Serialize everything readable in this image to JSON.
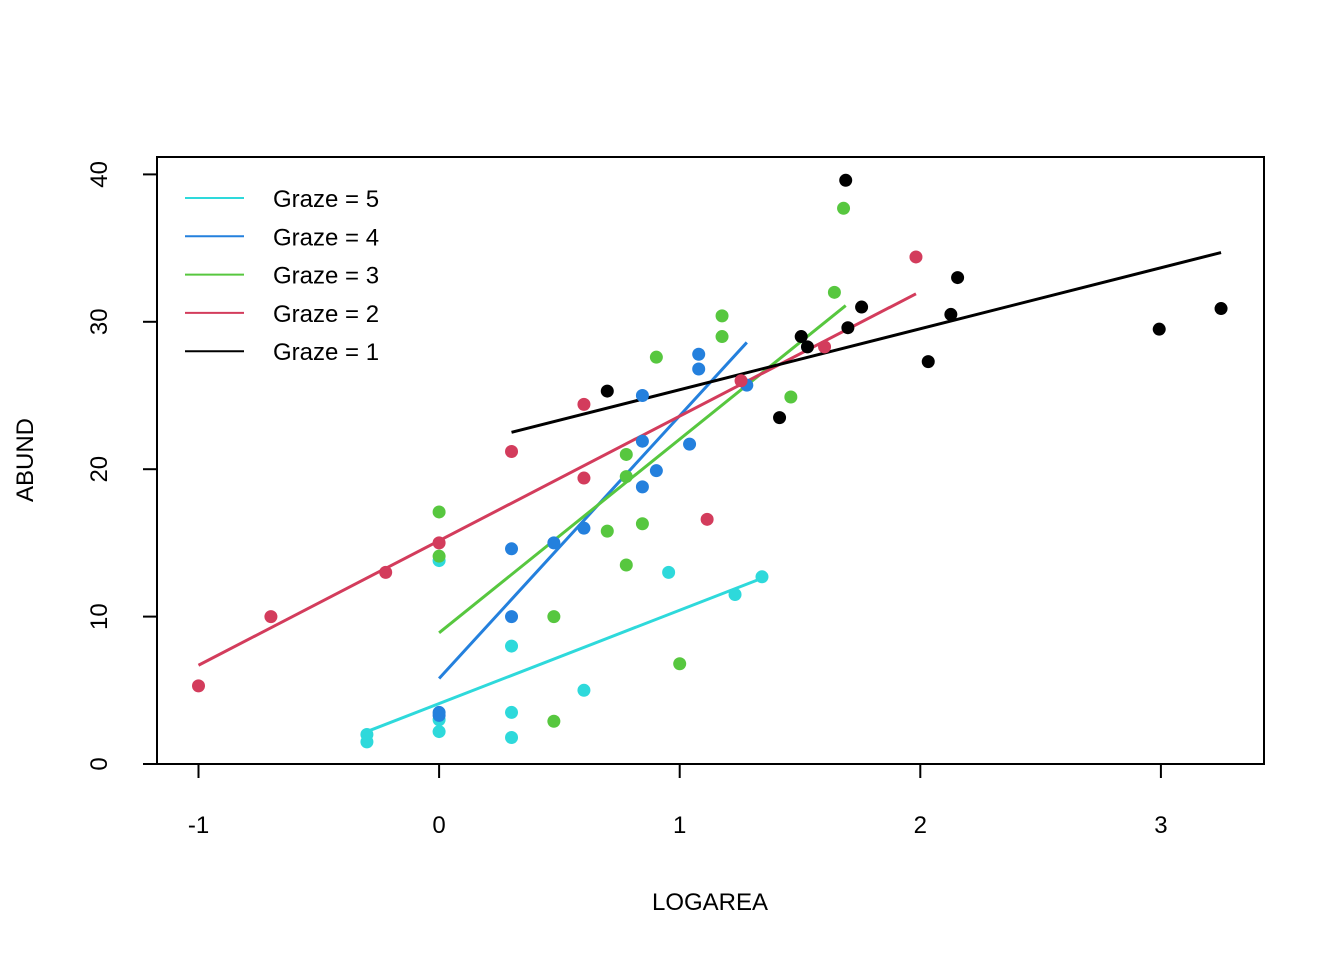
{
  "chart_data": {
    "type": "scatter",
    "title": "",
    "xlabel": "LOGAREA",
    "ylabel": "ABUND",
    "xlim": [
      -1.2,
      3.4
    ],
    "ylim": [
      0,
      41
    ],
    "x_ticks": [
      -1,
      0,
      1,
      2,
      3
    ],
    "y_ticks": [
      0,
      10,
      20,
      30,
      40
    ],
    "grid": false,
    "legend_position": "top-left",
    "legend_order": [
      "5",
      "4",
      "3",
      "2",
      "1"
    ],
    "series": [
      {
        "name": "Graze =  5",
        "color": "#2ED9DB",
        "points": [
          [
            -0.3,
            2.0
          ],
          [
            -0.3,
            1.5
          ],
          [
            0.0,
            13.8
          ],
          [
            0.0,
            3.0
          ],
          [
            0.0,
            2.2
          ],
          [
            0.301,
            8.0
          ],
          [
            0.301,
            3.5
          ],
          [
            0.301,
            1.8
          ],
          [
            0.602,
            5.0
          ],
          [
            0.954,
            13.0
          ],
          [
            1.23,
            11.5
          ],
          [
            1.342,
            12.7
          ]
        ],
        "fit": [
          [
            -0.3,
            2.2
          ],
          [
            1.342,
            12.6
          ]
        ]
      },
      {
        "name": "Graze =  4",
        "color": "#2480DD",
        "points": [
          [
            0.0,
            3.5
          ],
          [
            0.0,
            3.3
          ],
          [
            0.301,
            14.6
          ],
          [
            0.301,
            10.0
          ],
          [
            0.477,
            15.0
          ],
          [
            0.602,
            16.0
          ],
          [
            0.845,
            25.0
          ],
          [
            0.845,
            21.9
          ],
          [
            0.845,
            18.8
          ],
          [
            0.903,
            19.9
          ],
          [
            1.041,
            21.7
          ],
          [
            1.079,
            27.8
          ],
          [
            1.079,
            26.8
          ],
          [
            1.279,
            25.7
          ]
        ],
        "fit": [
          [
            0.0,
            5.8
          ],
          [
            1.279,
            28.6
          ]
        ]
      },
      {
        "name": "Graze =  3",
        "color": "#57C73F",
        "points": [
          [
            0.0,
            17.1
          ],
          [
            0.0,
            14.1
          ],
          [
            0.477,
            10.0
          ],
          [
            0.477,
            2.9
          ],
          [
            0.699,
            15.8
          ],
          [
            0.778,
            21.0
          ],
          [
            0.778,
            19.5
          ],
          [
            0.778,
            13.5
          ],
          [
            0.845,
            16.3
          ],
          [
            0.903,
            27.6
          ],
          [
            1.0,
            6.8
          ],
          [
            1.176,
            30.4
          ],
          [
            1.176,
            29.0
          ],
          [
            1.462,
            24.9
          ],
          [
            1.643,
            32.0
          ],
          [
            1.681,
            37.7
          ]
        ],
        "fit": [
          [
            0.0,
            8.9
          ],
          [
            1.69,
            31.1
          ]
        ]
      },
      {
        "name": "Graze =  2",
        "color": "#D33C5C",
        "points": [
          [
            -1.0,
            5.3
          ],
          [
            -0.699,
            10.0
          ],
          [
            -0.222,
            13.0
          ],
          [
            0.0,
            15.0
          ],
          [
            0.301,
            21.2
          ],
          [
            0.602,
            24.4
          ],
          [
            0.602,
            19.4
          ],
          [
            1.114,
            16.6
          ],
          [
            1.255,
            26.0
          ],
          [
            1.602,
            28.3
          ],
          [
            1.982,
            34.4
          ]
        ],
        "fit": [
          [
            -1.0,
            6.7
          ],
          [
            1.982,
            31.9
          ]
        ]
      },
      {
        "name": "Graze =  1",
        "color": "#000000",
        "points": [
          [
            0.699,
            25.3
          ],
          [
            1.415,
            23.5
          ],
          [
            1.505,
            29.0
          ],
          [
            1.531,
            28.3
          ],
          [
            1.69,
            39.6
          ],
          [
            1.699,
            29.6
          ],
          [
            1.756,
            31.0
          ],
          [
            2.033,
            27.3
          ],
          [
            2.127,
            30.5
          ],
          [
            2.155,
            33.0
          ],
          [
            2.993,
            29.5
          ],
          [
            3.25,
            30.9
          ]
        ],
        "fit": [
          [
            0.301,
            22.5
          ],
          [
            3.25,
            34.7
          ]
        ]
      }
    ]
  }
}
